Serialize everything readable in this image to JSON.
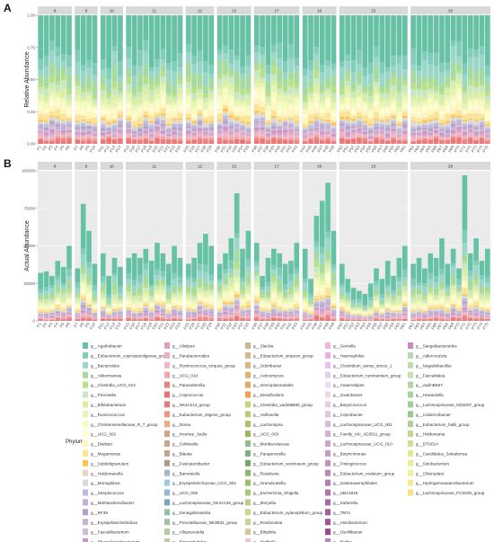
{
  "chart_data": {
    "type": "bar",
    "stacked": true,
    "facet_groups": [
      {
        "label": "8",
        "samples": [
          "P1",
          "P2",
          "P3",
          "P4",
          "P5",
          "P6"
        ]
      },
      {
        "label": "9",
        "samples": [
          "P7",
          "P8",
          "P9",
          "P10"
        ]
      },
      {
        "label": "10",
        "samples": [
          "P11",
          "P12",
          "P13",
          "P14"
        ]
      },
      {
        "label": "11",
        "samples": [
          "P15",
          "P16",
          "P17",
          "P18",
          "P19",
          "P20",
          "P21",
          "P22",
          "P23",
          "P24"
        ]
      },
      {
        "label": "12",
        "samples": [
          "P25",
          "P26",
          "P27",
          "P28",
          "P29"
        ]
      },
      {
        "label": "13",
        "samples": [
          "P30",
          "P31",
          "P32",
          "P33",
          "P34",
          "P35"
        ]
      },
      {
        "label": "17",
        "samples": [
          "P36",
          "P37",
          "P38",
          "P39",
          "P40",
          "P41",
          "P42",
          "P43"
        ]
      },
      {
        "label": "18",
        "samples": [
          "P44",
          "P45",
          "P46",
          "P47",
          "P48",
          "P49"
        ]
      },
      {
        "label": "23",
        "samples": [
          "P50",
          "P51",
          "P52",
          "P53",
          "P54",
          "P55",
          "P56",
          "P57",
          "P58",
          "P59",
          "P60",
          "P61"
        ]
      },
      {
        "label": "29",
        "samples": [
          "P62",
          "P63",
          "P64",
          "P65",
          "P66",
          "P67",
          "P68",
          "P69",
          "P70",
          "P71",
          "P72",
          "P73",
          "P74",
          "P75"
        ]
      }
    ],
    "panels": [
      {
        "letter": "A",
        "ylabel": "Relative Abundance",
        "ylim": [
          0,
          1
        ],
        "yticks": [
          "0.00",
          "0.25",
          "0.50",
          "0.75",
          "1.00"
        ],
        "ytick_values": [
          0,
          0.25,
          0.5,
          0.75,
          1
        ]
      },
      {
        "letter": "B",
        "ylabel": "Actual Abundance",
        "ylim": [
          0,
          100000
        ],
        "yticks": [
          "0",
          "25000",
          "50000",
          "75000",
          "100000"
        ],
        "ytick_values": [
          0,
          25000,
          50000,
          75000,
          100000
        ]
      }
    ],
    "totals": [
      32000,
      33000,
      30000,
      40000,
      36000,
      50000,
      35000,
      78000,
      60000,
      38000,
      45000,
      30000,
      42000,
      36000,
      42000,
      45000,
      42000,
      48000,
      40000,
      52000,
      45000,
      38000,
      50000,
      42000,
      38000,
      42000,
      52000,
      58000,
      50000,
      38000,
      45000,
      55000,
      85000,
      48000,
      60000,
      52000,
      30000,
      42000,
      48000,
      45000,
      38000,
      40000,
      52000,
      48000,
      28000,
      70000,
      80000,
      92000,
      60000,
      38000,
      28000,
      22000,
      20000,
      18000,
      25000,
      35000,
      28000,
      40000,
      30000,
      42000,
      50000,
      38000,
      42000,
      35000,
      45000,
      42000,
      55000,
      38000,
      48000,
      35000,
      97000,
      45000,
      55000,
      40000,
      48000
    ],
    "legend": {
      "title": "Phylum",
      "items": [
        {
          "name": "g__Agathobacter",
          "color": "#66c2a5"
        },
        {
          "name": "g__Eubacterium_coprostanoligenes_group",
          "color": "#7fcdbb"
        },
        {
          "name": "g__Bacteroides",
          "color": "#99d8c9"
        },
        {
          "name": "g__Akkermansia",
          "color": "#a6dba0"
        },
        {
          "name": "g__Clostridia_UCG_014",
          "color": "#b8e186"
        },
        {
          "name": "g__Prevotella",
          "color": "#c7e9c0"
        },
        {
          "name": "g__Bifidobacterium",
          "color": "#d9f0a3"
        },
        {
          "name": "g__Ruminococcus",
          "color": "#e6f5b0"
        },
        {
          "name": "g__Christensenellaceae_R_7_group",
          "color": "#f7fcb9"
        },
        {
          "name": "g__UCG_002",
          "color": "#ffffcc"
        },
        {
          "name": "g__Dialister",
          "color": "#fff7bc"
        },
        {
          "name": "g__Megamonas",
          "color": "#fee391"
        },
        {
          "name": "g__Subdoligranulum",
          "color": "#fec44f"
        },
        {
          "name": "g__Holdemanella",
          "color": "#e5d8bd"
        },
        {
          "name": "g__Monoglobus",
          "color": "#d9d9d9"
        },
        {
          "name": "g__Streptococcus",
          "color": "#bcbddc"
        },
        {
          "name": "g__Methanobrevibacter",
          "color": "#c2b0d6"
        },
        {
          "name": "g__RF39",
          "color": "#b3a2c7"
        },
        {
          "name": "g__Erysipelatoclostridium",
          "color": "#cab2d6"
        },
        {
          "name": "g__Faecalibacterium",
          "color": "#d4b9da"
        },
        {
          "name": "g__Phascolarctobacterium",
          "color": "#c994c7"
        },
        {
          "name": "g__Alistipes",
          "color": "#df9ec6"
        },
        {
          "name": "g__Parabacteroides",
          "color": "#e7b0c8"
        },
        {
          "name": "g__Ruminococcus_torques_group",
          "color": "#f1b6c4"
        },
        {
          "name": "g__UCG_010",
          "color": "#f4a6a6"
        },
        {
          "name": "g__Parasutterella",
          "color": "#f08080"
        },
        {
          "name": "g__Coprococcus",
          "color": "#ef6f6f"
        },
        {
          "name": "g__NK4A214_group",
          "color": "#e8787a"
        },
        {
          "name": "g__Eubacterium_eligens_group",
          "color": "#e9967a"
        },
        {
          "name": "g__Dorea",
          "color": "#f3a582"
        },
        {
          "name": "g__Incertae_Sedis",
          "color": "#d4a585"
        },
        {
          "name": "g__Collinsella",
          "color": "#c9a88a"
        },
        {
          "name": "g__Blautia",
          "color": "#bfa58f"
        },
        {
          "name": "g__Fusicatenibacter",
          "color": "#b09a88"
        },
        {
          "name": "g__Barnesiella",
          "color": "#a8b7c8"
        },
        {
          "name": "g__Erysipelotrichaceae_UCG_003",
          "color": "#9ecae1"
        },
        {
          "name": "g__UCG_005",
          "color": "#8fb9d6"
        },
        {
          "name": "g__Lachnospiraceae_NK4A136_group",
          "color": "#7aa6c2"
        },
        {
          "name": "g__Senegalimassilia",
          "color": "#91bfa8"
        },
        {
          "name": "g__Prevotellaceae_NK3B31_group",
          "color": "#a3c4a0"
        },
        {
          "name": "g__Alloprevotella",
          "color": "#b3c9a0"
        },
        {
          "name": "g__Enterorhabdus",
          "color": "#bfcc9a"
        },
        {
          "name": "g__Slackia",
          "color": "#c9b98f"
        },
        {
          "name": "g__Eubacterium_siraeum_group",
          "color": "#d1bb8a"
        },
        {
          "name": "g__Odoribacter",
          "color": "#d8b880"
        },
        {
          "name": "g__Actinomyces",
          "color": "#e0b070"
        },
        {
          "name": "g__Izemoplasmatales",
          "color": "#e8a860"
        },
        {
          "name": "g__Desulfovibrio",
          "color": "#f0a050"
        },
        {
          "name": "g__Clostridia_vadinBB60_group",
          "color": "#c8d67a"
        },
        {
          "name": "g__Veillonella",
          "color": "#b8cc70"
        },
        {
          "name": "g__Lachnospira",
          "color": "#a8c266"
        },
        {
          "name": "g__UCG_003",
          "color": "#98b85c"
        },
        {
          "name": "g__Muribaculaceae",
          "color": "#8fbc8f"
        },
        {
          "name": "g__Parapevotella",
          "color": "#7fb07f"
        },
        {
          "name": "g__Eubacterium_ventriosum_group",
          "color": "#70a870"
        },
        {
          "name": "g__Roseburia",
          "color": "#88b870"
        },
        {
          "name": "g__Granulicatella",
          "color": "#98c070"
        },
        {
          "name": "g__Escherichia_Shigella",
          "color": "#a8c878"
        },
        {
          "name": "g__Moryella",
          "color": "#b8d080"
        },
        {
          "name": "g__Eubacterium_xylanophilum_group",
          "color": "#c8d888"
        },
        {
          "name": "g__Romboutsia",
          "color": "#d0d090"
        },
        {
          "name": "g__Bilophila",
          "color": "#d8c898"
        },
        {
          "name": "g__Mailhella",
          "color": "#f4c2d0"
        },
        {
          "name": "g__Gemella",
          "color": "#f0b8d8"
        },
        {
          "name": "g__Haemophilus",
          "color": "#ecb0e0"
        },
        {
          "name": "g__Clostridium_sensu_stricto_1",
          "color": "#e8c0e8"
        },
        {
          "name": "g__Eubacterium_ruminantium_group",
          "color": "#e0d0e8"
        },
        {
          "name": "g__Anaerostipes",
          "color": "#e8e0ee"
        },
        {
          "name": "g__Oxalobacter",
          "color": "#ecd8e4"
        },
        {
          "name": "g__Butyricicoccus",
          "color": "#e6cede"
        },
        {
          "name": "g__Coprobacter",
          "color": "#e0c4d8"
        },
        {
          "name": "g__Lachnospiraceae_UCG_001",
          "color": "#dabad2"
        },
        {
          "name": "g__Family_XIII_AD3011_group",
          "color": "#d4b0cc"
        },
        {
          "name": "g__Lachnospiraceae_UCG_010",
          "color": "#cea6c6"
        },
        {
          "name": "g__Butyricimonas",
          "color": "#c89cc0"
        },
        {
          "name": "g__Frisingicoccus",
          "color": "#c292ba"
        },
        {
          "name": "g__Eubacterium_nodatum_group",
          "color": "#bc88b4"
        },
        {
          "name": "g__Gastranaerophilales",
          "color": "#b67eae"
        },
        {
          "name": "g__UBA1819",
          "color": "#b074a8"
        },
        {
          "name": "g__Sutterella",
          "color": "#aa6aa2"
        },
        {
          "name": "g__TM7x",
          "color": "#a4609c"
        },
        {
          "name": "g__Asinibacterium",
          "color": "#9e5696"
        },
        {
          "name": "g__Oscillibacter",
          "color": "#984c90"
        },
        {
          "name": "g__Rothia",
          "color": "#c080c0"
        },
        {
          "name": "g__Sanguibacteroides",
          "color": "#c88ac0"
        },
        {
          "name": "g__Adlercreutzia",
          "color": "#b8d8b0"
        },
        {
          "name": "g__Negativibacillus",
          "color": "#c0dcb0"
        },
        {
          "name": "g__Faecalitalea",
          "color": "#c8e0b0"
        },
        {
          "name": "g__vadinBE97",
          "color": "#b0d4a8"
        },
        {
          "name": "g__Howardella",
          "color": "#a8d0a0"
        },
        {
          "name": "g__Lachnospiraceae_ND3007_group",
          "color": "#a0cc98"
        },
        {
          "name": "g__Coldercribacter",
          "color": "#98c890"
        },
        {
          "name": "g__Eubacterium_hallii_group",
          "color": "#b0d090"
        },
        {
          "name": "g__Holdemania",
          "color": "#c0d890"
        },
        {
          "name": "g__DTU014",
          "color": "#d0e090"
        },
        {
          "name": "g__Candidatus_Soleaferrea",
          "color": "#e0e890"
        },
        {
          "name": "g__Solobacterium",
          "color": "#e8ec98"
        },
        {
          "name": "g__Chloroplast",
          "color": "#f0f0a0"
        },
        {
          "name": "g__Hydrogenoanaerobacterium",
          "color": "#f4e890"
        },
        {
          "name": "g__Lachnospiraceae_FCS020_group",
          "color": "#f8e080"
        }
      ]
    }
  }
}
